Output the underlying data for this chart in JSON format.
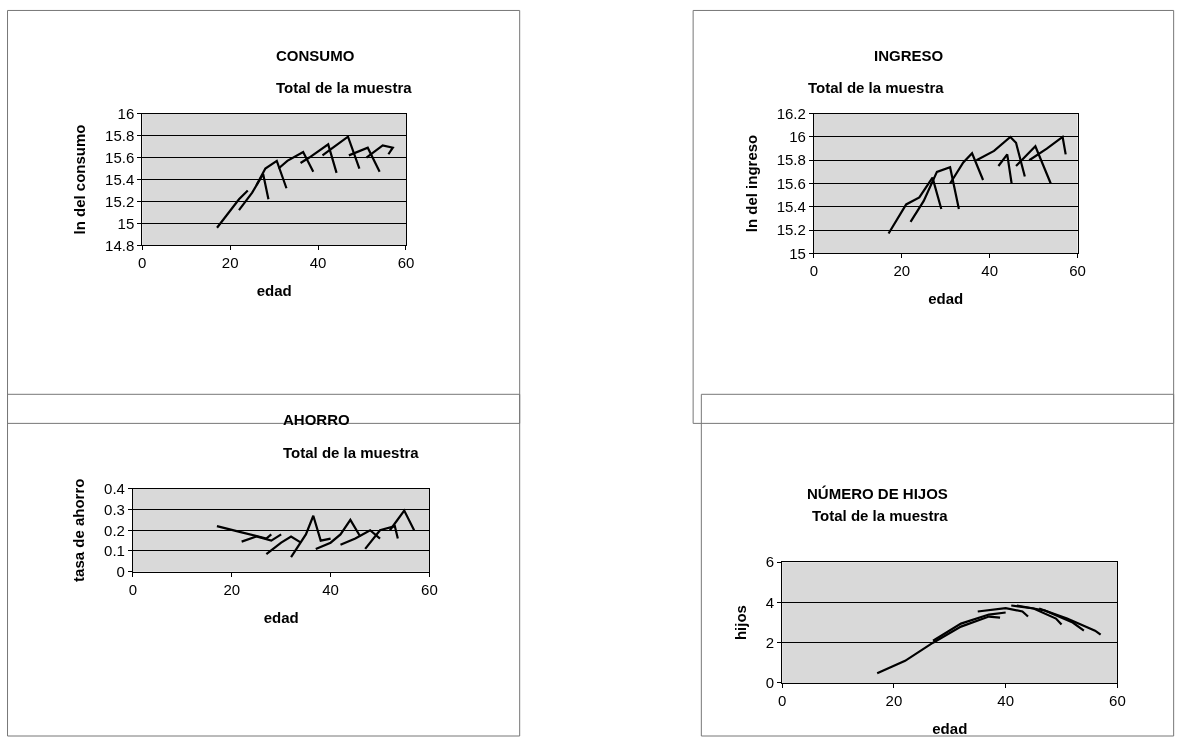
{
  "chart_data": [
    {
      "type": "line",
      "title": "CONSUMO",
      "subtitle": "Total de la muestra",
      "xlabel": "edad",
      "ylabel": "ln del consumo",
      "xlim": [
        0,
        60
      ],
      "xticks": [
        0,
        20,
        40,
        60
      ],
      "ylim": [
        14.8,
        16
      ],
      "yticks": [
        14.8,
        15,
        15.2,
        15.4,
        15.6,
        15.8,
        16
      ],
      "grid": "y",
      "series": [
        {
          "color": "#000000",
          "x": [
            17,
            22,
            24
          ],
          "values": [
            14.96,
            15.22,
            15.3
          ]
        },
        {
          "color": "#000000",
          "x": [
            22,
            25,
            27.5,
            28.7
          ],
          "values": [
            15.12,
            15.28,
            15.45,
            15.22
          ]
        },
        {
          "color": "#000000",
          "x": [
            26,
            28,
            30.6,
            32.8
          ],
          "values": [
            15.35,
            15.5,
            15.57,
            15.32
          ]
        },
        {
          "color": "#000000",
          "x": [
            31,
            33,
            36.6,
            38.9
          ],
          "values": [
            15.5,
            15.57,
            15.65,
            15.47
          ]
        },
        {
          "color": "#000000",
          "x": [
            36,
            38,
            42.3,
            44.2
          ],
          "values": [
            15.55,
            15.6,
            15.72,
            15.46
          ]
        },
        {
          "color": "#000000",
          "x": [
            41,
            43,
            46.8,
            49.4
          ],
          "values": [
            15.62,
            15.68,
            15.79,
            15.5
          ]
        },
        {
          "color": "#000000",
          "x": [
            47,
            51.3,
            54
          ],
          "values": [
            15.62,
            15.69,
            15.47
          ]
        },
        {
          "color": "#000000",
          "x": [
            51,
            54.7,
            57,
            56
          ],
          "values": [
            15.6,
            15.71,
            15.69,
            15.63
          ]
        }
      ]
    },
    {
      "type": "line",
      "title": "INGRESO",
      "subtitle": "Total de la muestra",
      "xlabel": "edad",
      "ylabel": "ln del ingreso",
      "xlim": [
        0,
        60
      ],
      "xticks": [
        0,
        20,
        40,
        60
      ],
      "ylim": [
        15,
        16.2
      ],
      "yticks": [
        15,
        15.2,
        15.4,
        15.6,
        15.8,
        16,
        16.2
      ],
      "grid": "y",
      "series": [
        {
          "color": "#000000",
          "x": [
            17,
            21,
            24,
            27,
            29
          ],
          "values": [
            15.17,
            15.42,
            15.48,
            15.65,
            15.38
          ]
        },
        {
          "color": "#000000",
          "x": [
            22,
            25,
            28,
            31,
            33
          ],
          "values": [
            15.27,
            15.45,
            15.7,
            15.74,
            15.38
          ]
        },
        {
          "color": "#000000",
          "x": [
            31,
            34,
            36,
            38.5
          ],
          "values": [
            15.6,
            15.78,
            15.86,
            15.63
          ]
        },
        {
          "color": "#000000",
          "x": [
            37,
            41,
            44.7,
            46,
            48
          ],
          "values": [
            15.8,
            15.88,
            16,
            15.95,
            15.66
          ]
        },
        {
          "color": "#000000",
          "x": [
            42,
            44,
            45
          ],
          "values": [
            15.75,
            15.85,
            15.6
          ]
        },
        {
          "color": "#000000",
          "x": [
            46,
            50.4,
            53.9
          ],
          "values": [
            15.75,
            15.92,
            15.6
          ]
        },
        {
          "color": "#000000",
          "x": [
            49,
            53,
            56.6,
            57.3
          ],
          "values": [
            15.8,
            15.9,
            16,
            15.85
          ]
        }
      ]
    },
    {
      "type": "line",
      "title": "AHORRO",
      "subtitle": "Total de la muestra",
      "xlabel": "edad",
      "ylabel": "tasa de ahorro",
      "xlim": [
        0,
        60
      ],
      "xticks": [
        0,
        20,
        40,
        60
      ],
      "ylim": [
        0,
        0.4
      ],
      "yticks": [
        0,
        0.1,
        0.2,
        0.3,
        0.4
      ],
      "grid": "y",
      "series": [
        {
          "color": "#000000",
          "x": [
            17,
            22,
            27,
            28
          ],
          "values": [
            0.22,
            0.19,
            0.16,
            0.18
          ]
        },
        {
          "color": "#000000",
          "x": [
            22,
            25,
            28,
            30
          ],
          "values": [
            0.145,
            0.17,
            0.15,
            0.18
          ]
        },
        {
          "color": "#000000",
          "x": [
            27,
            30,
            32,
            34
          ],
          "values": [
            0.085,
            0.14,
            0.17,
            0.14
          ]
        },
        {
          "color": "#000000",
          "x": [
            32,
            35,
            36.5,
            38,
            40
          ],
          "values": [
            0.07,
            0.18,
            0.27,
            0.15,
            0.16
          ]
        },
        {
          "color": "#000000",
          "x": [
            37,
            40,
            42,
            44,
            46
          ],
          "values": [
            0.11,
            0.14,
            0.18,
            0.25,
            0.17
          ]
        },
        {
          "color": "#000000",
          "x": [
            42,
            45,
            48,
            50
          ],
          "values": [
            0.13,
            0.16,
            0.2,
            0.16
          ]
        },
        {
          "color": "#000000",
          "x": [
            47,
            50,
            53,
            53.6
          ],
          "values": [
            0.11,
            0.2,
            0.22,
            0.16
          ]
        },
        {
          "color": "#000000",
          "x": [
            52,
            54.9,
            56.9
          ],
          "values": [
            0.2,
            0.295,
            0.2
          ]
        }
      ]
    },
    {
      "type": "line",
      "title": "NÚMERO DE HIJOS",
      "subtitle": "Total de la muestra",
      "xlabel": "edad",
      "ylabel": "hijos",
      "xlim": [
        0,
        60
      ],
      "xticks": [
        0,
        20,
        40,
        60
      ],
      "ylim": [
        0,
        6
      ],
      "yticks": [
        0,
        2,
        4,
        6
      ],
      "grid": "y",
      "series": [
        {
          "color": "#000000",
          "x": [
            17,
            22,
            27,
            32,
            37,
            39
          ],
          "values": [
            0.48,
            1.1,
            2,
            2.8,
            3.3,
            3.25
          ]
        },
        {
          "color": "#000000",
          "x": [
            27,
            32,
            37,
            40
          ],
          "values": [
            2.1,
            2.95,
            3.4,
            3.5
          ]
        },
        {
          "color": "#000000",
          "x": [
            35,
            40,
            43,
            44
          ],
          "values": [
            3.55,
            3.72,
            3.55,
            3.3
          ]
        },
        {
          "color": "#000000",
          "x": [
            41,
            45,
            49,
            50
          ],
          "values": [
            3.85,
            3.7,
            3.2,
            2.9
          ]
        },
        {
          "color": "#000000",
          "x": [
            42,
            47,
            52,
            54
          ],
          "values": [
            3.85,
            3.6,
            3.0,
            2.6
          ]
        },
        {
          "color": "#000000",
          "x": [
            46,
            51,
            56,
            57
          ],
          "values": [
            3.7,
            3.2,
            2.6,
            2.4
          ]
        }
      ]
    }
  ]
}
